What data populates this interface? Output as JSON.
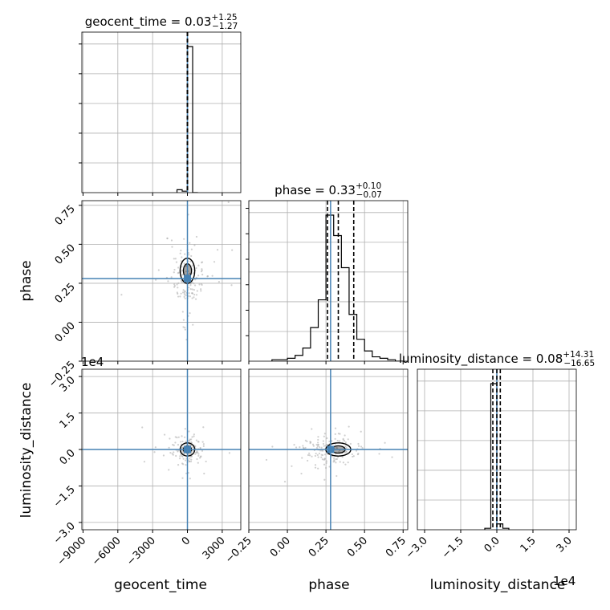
{
  "chart_data": {
    "type": "corner",
    "parameters": [
      "geocent_time",
      "phase",
      "luminosity_distance"
    ],
    "titles": [
      {
        "name": "geocent_time",
        "value": "0.03",
        "plus": "+1.25",
        "minus": "−1.27"
      },
      {
        "name": "phase",
        "value": "0.33",
        "plus": "+0.10",
        "minus": "−0.07"
      },
      {
        "name": "luminosity_distance",
        "value": "0.08",
        "plus": "+14.31",
        "minus": "−16.65"
      }
    ],
    "axis_labels": {
      "x": [
        "geocent_time",
        "phase",
        "luminosity_distance"
      ],
      "y": [
        "phase",
        "luminosity_distance"
      ]
    },
    "offset_text": "1e4",
    "ticks": {
      "geocent_time": {
        "values": [
          -9000,
          -6000,
          -3000,
          0,
          3000
        ],
        "labels": [
          "−9000",
          "−6000",
          "−3000",
          "0",
          "3000"
        ]
      },
      "phase": {
        "values": [
          -0.25,
          0.0,
          0.25,
          0.5,
          0.75
        ],
        "labels": [
          "−0.25",
          "0.00",
          "0.25",
          "0.50",
          "0.75"
        ]
      },
      "luminosity_distance": {
        "values": [
          -3.0,
          -1.5,
          0.0,
          1.5,
          3.0
        ],
        "labels": [
          "−3.0",
          "−1.5",
          "0.0",
          "1.5",
          "3.0"
        ]
      }
    },
    "ranges": {
      "geocent_time": [
        -9100,
        4600
      ],
      "phase": [
        -0.25,
        0.78
      ],
      "luminosity_distance": [
        -3.3,
        3.3
      ]
    },
    "injection": {
      "geocent_time": 0,
      "phase": 0.28,
      "luminosity_distance": 0
    },
    "quantiles": {
      "geocent_time": [
        -1.24,
        0.03,
        1.28
      ],
      "phase": [
        0.26,
        0.33,
        0.43
      ],
      "luminosity_distance": [
        -0.166,
        0.0008,
        0.144
      ]
    },
    "histograms": {
      "geocent_time": {
        "edges": [
          -900,
          -450,
          0,
          450,
          900
        ],
        "counts": [
          0.02,
          0.01,
          1.0,
          0.0
        ]
      },
      "phase": {
        "edges": [
          -0.1,
          -0.05,
          0.0,
          0.05,
          0.1,
          0.15,
          0.2,
          0.25,
          0.3,
          0.35,
          0.4,
          0.45,
          0.5,
          0.55,
          0.6,
          0.65,
          0.7,
          0.75
        ],
        "counts": [
          0.01,
          0.01,
          0.02,
          0.04,
          0.09,
          0.23,
          0.42,
          1.0,
          0.86,
          0.64,
          0.32,
          0.15,
          0.07,
          0.03,
          0.02,
          0.01,
          0.0
        ]
      },
      "luminosity_distance": {
        "edges": [
          -0.5,
          -0.25,
          0.0,
          0.25,
          0.5
        ],
        "counts": [
          0.01,
          1.0,
          0.04,
          0.01
        ]
      }
    },
    "colors": {
      "truth": "#4682b4",
      "hist": "#000000",
      "scatter": "#b0b0b0",
      "grid": "#b0b0b0"
    },
    "grid": true
  }
}
